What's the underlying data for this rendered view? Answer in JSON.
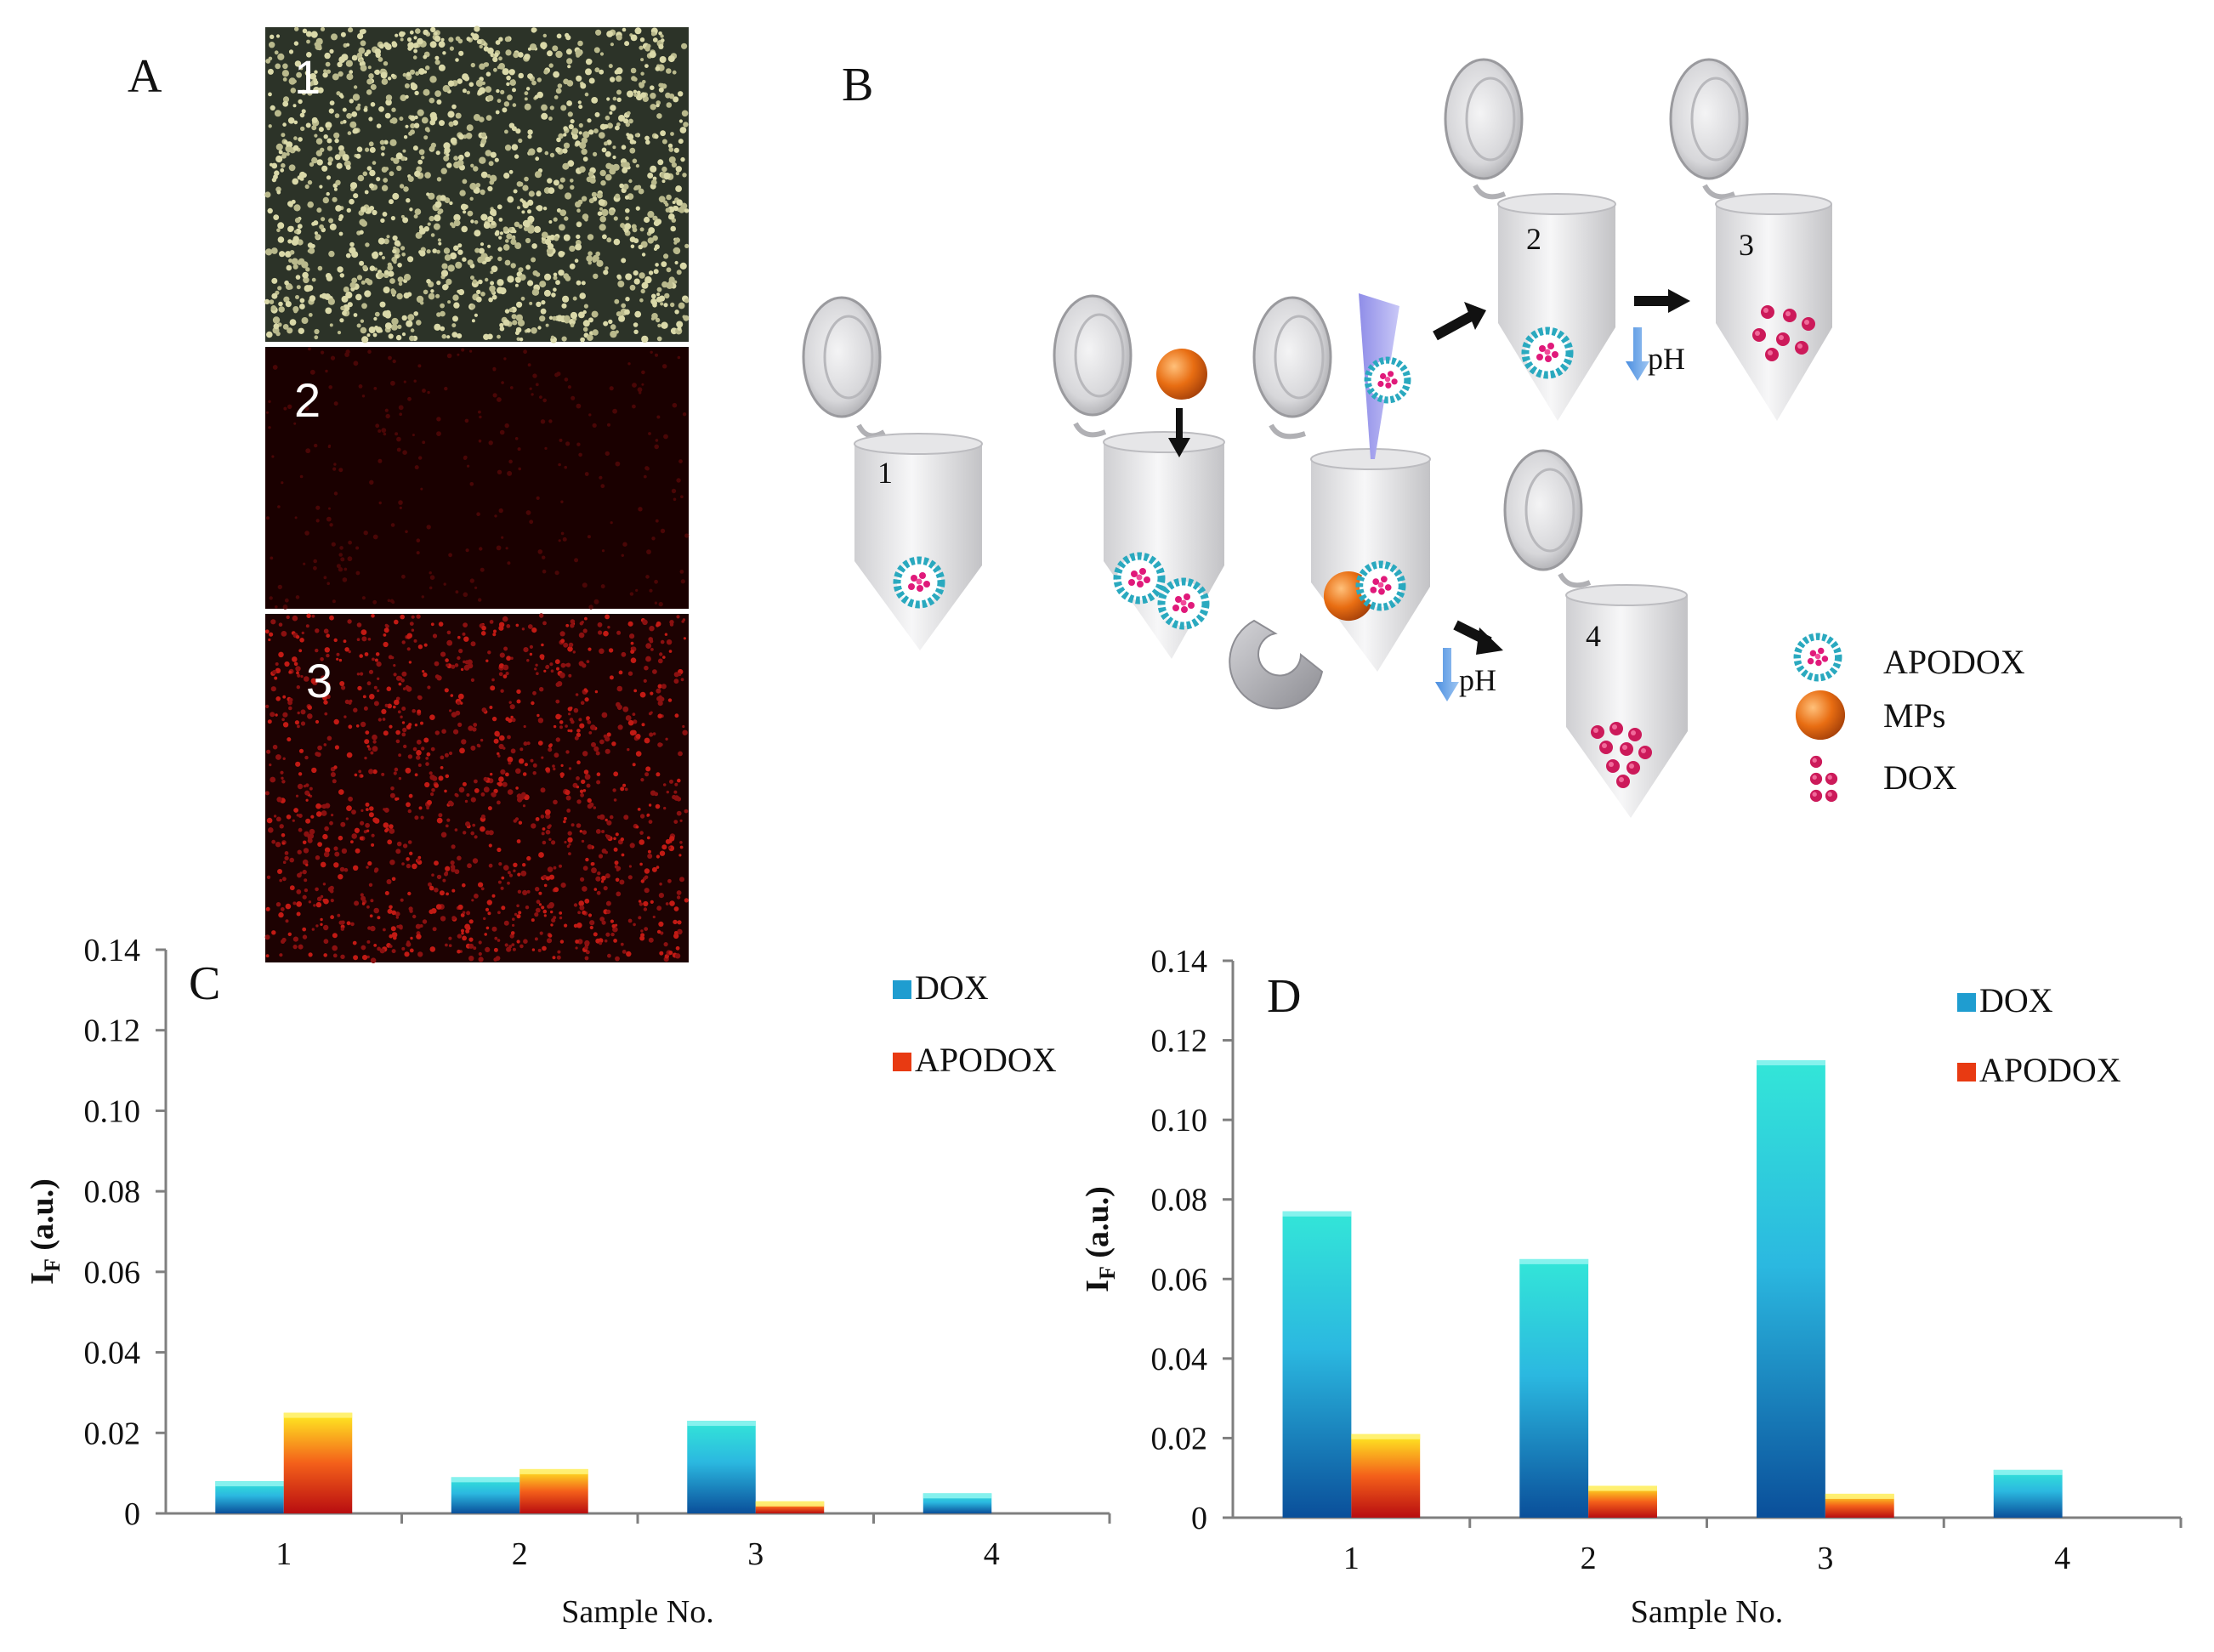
{
  "panels": {
    "a_label": "A",
    "b_label": "B",
    "c_label": "C",
    "d_label": "D"
  },
  "micrographs": [
    {
      "label": "1",
      "type": "bright-field"
    },
    {
      "label": "2",
      "type": "fluorescence-dim"
    },
    {
      "label": "3",
      "type": "fluorescence-bright"
    }
  ],
  "scheme": {
    "tube_labels": [
      "1",
      "2",
      "3",
      "4"
    ],
    "ph_label": "pH",
    "legend": [
      "APODOX",
      "MPs",
      "DOX"
    ]
  },
  "colors": {
    "dox_dark": "#0a4f9a",
    "dox_light": "#33dde0",
    "apodox_dark": "#b80d10",
    "apodox_light": "#ffee22",
    "mp_orange": "#e86d12",
    "dox_pink": "#cc1a5a"
  },
  "chart_data": [
    {
      "type": "bar",
      "panel": "C",
      "categories": [
        "1",
        "2",
        "3",
        "4"
      ],
      "series": [
        {
          "name": "DOX",
          "values": [
            0.008,
            0.009,
            0.023,
            0.005
          ]
        },
        {
          "name": "APODOX",
          "values": [
            0.025,
            0.011,
            0.003,
            0
          ]
        }
      ],
      "xlabel": "Sample No.",
      "ylabel": "I",
      "ylabel_sub": "F",
      "ylabel_unit": " (a.u.)",
      "ylim": [
        0,
        0.14
      ],
      "yticks": [
        "0",
        "0.02",
        "0.04",
        "0.06",
        "0.08",
        "0.10",
        "0.12",
        "0.14"
      ],
      "legend_position": "top-right"
    },
    {
      "type": "bar",
      "panel": "D",
      "categories": [
        "1",
        "2",
        "3",
        "4"
      ],
      "series": [
        {
          "name": "DOX",
          "values": [
            0.077,
            0.065,
            0.115,
            0.012
          ]
        },
        {
          "name": "APODOX",
          "values": [
            0.021,
            0.008,
            0.006,
            0
          ]
        }
      ],
      "xlabel": "Sample No.",
      "ylabel": "I",
      "ylabel_sub": "F",
      "ylabel_unit": " (a.u.)",
      "ylim": [
        0,
        0.14
      ],
      "yticks": [
        "0",
        "0.02",
        "0.04",
        "0.06",
        "0.08",
        "0.10",
        "0.12",
        "0.14"
      ],
      "legend_position": "top-right"
    }
  ]
}
